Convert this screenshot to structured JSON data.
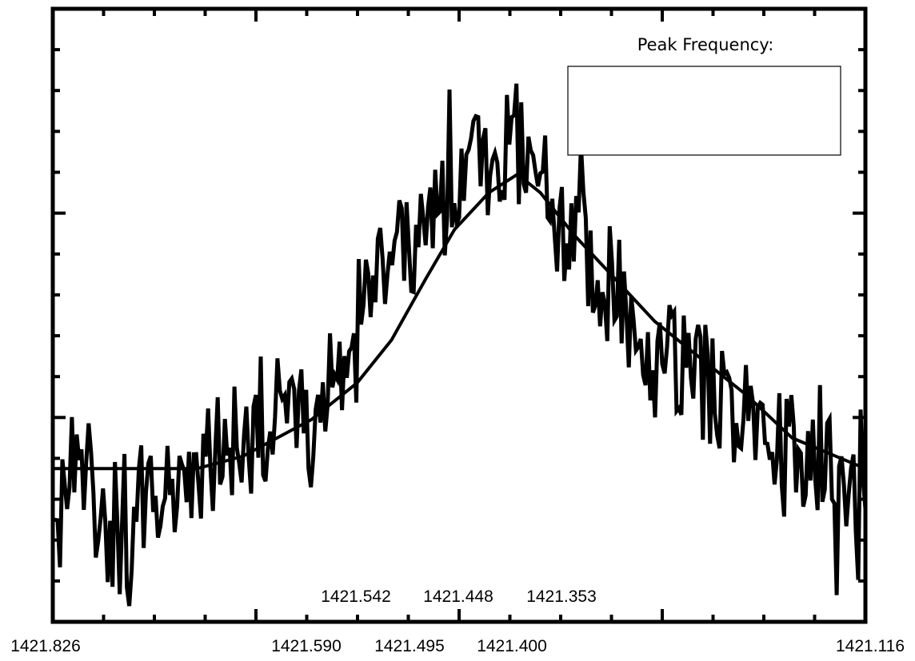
{
  "chart_data": {
    "type": "line",
    "title": "",
    "xlabel": "",
    "ylabel": "",
    "x_axis_reversed": true,
    "xlim": [
      1421.826,
      1421.116
    ],
    "ylim": [
      0,
      1
    ],
    "grid": false,
    "tick_labels_bottom": [
      "1421.826",
      "1421.590",
      "1421.495",
      "1421.400",
      "1421.116"
    ],
    "tick_labels_inner": [
      "1421.542",
      "1421.448",
      "1421.353"
    ],
    "answer_box": {
      "label": "Peak Frequency:",
      "value": ""
    },
    "series": [
      {
        "style": "noisy",
        "x": [
          1421.826,
          1421.8,
          1421.78,
          1421.76,
          1421.74,
          1421.72,
          1421.7,
          1421.68,
          1421.66,
          1421.64,
          1421.62,
          1421.6,
          1421.58,
          1421.56,
          1421.54,
          1421.52,
          1421.5,
          1421.48,
          1421.46,
          1421.44,
          1421.42,
          1421.4,
          1421.38,
          1421.36,
          1421.34,
          1421.32,
          1421.3,
          1421.28,
          1421.26,
          1421.24,
          1421.22,
          1421.2,
          1421.18,
          1421.16,
          1421.14,
          1421.116
        ],
        "y": [
          0.22,
          0.25,
          0.15,
          0.12,
          0.2,
          0.23,
          0.26,
          0.27,
          0.3,
          0.32,
          0.34,
          0.36,
          0.4,
          0.46,
          0.56,
          0.6,
          0.66,
          0.7,
          0.74,
          0.76,
          0.78,
          0.74,
          0.64,
          0.58,
          0.55,
          0.49,
          0.44,
          0.42,
          0.39,
          0.38,
          0.33,
          0.3,
          0.28,
          0.26,
          0.24,
          0.25
        ]
      },
      {
        "style": "smooth",
        "x": [
          1421.826,
          1421.7,
          1421.66,
          1421.6,
          1421.56,
          1421.53,
          1421.5,
          1421.475,
          1421.445,
          1421.42,
          1421.4,
          1421.37,
          1421.34,
          1421.3,
          1421.26,
          1421.22,
          1421.18,
          1421.116
        ],
        "y": [
          0.25,
          0.25,
          0.27,
          0.33,
          0.39,
          0.46,
          0.56,
          0.64,
          0.7,
          0.73,
          0.7,
          0.63,
          0.57,
          0.49,
          0.43,
          0.37,
          0.3,
          0.25
        ]
      }
    ]
  }
}
